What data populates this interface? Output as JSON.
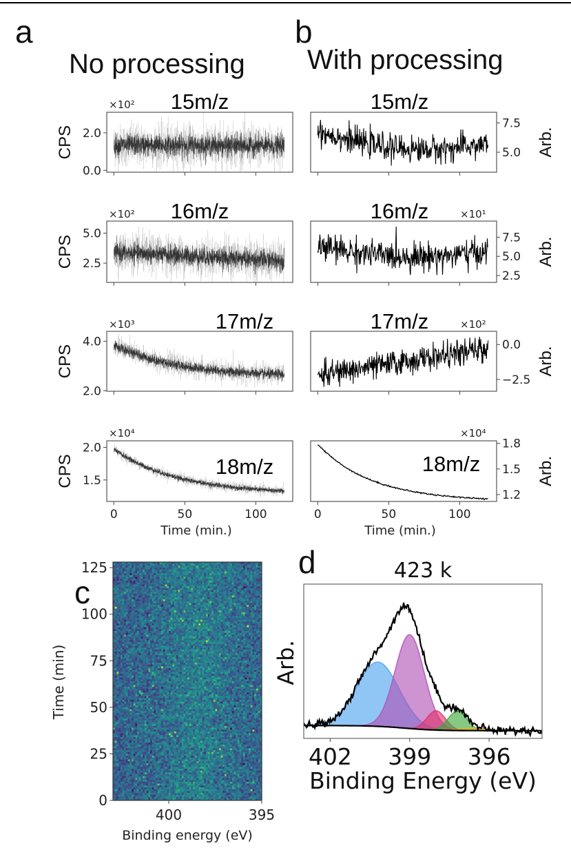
{
  "chart_data": [
    {
      "id": "a-15",
      "type": "line",
      "panel": "a",
      "title": "15m/z",
      "xlabel": "",
      "ylabel": "CPS",
      "offset_text": "×10²",
      "xlim": [
        -5,
        126
      ],
      "ylim": [
        -0.1,
        3.1
      ],
      "yticks": [
        0.0,
        2.0
      ],
      "ytick_labels": [
        "0.0",
        "2.0"
      ],
      "xticks": [
        0,
        50,
        100
      ],
      "ytick_side": "left",
      "style": "dense-noisy",
      "trend": {
        "x": [
          0,
          120
        ],
        "y_start": 1.35,
        "y_end": 1.3
      },
      "noise_sd": 0.35
    },
    {
      "id": "a-16",
      "type": "line",
      "panel": "a",
      "title": "16m/z",
      "ylabel": "CPS",
      "offset_text": "×10²",
      "xlim": [
        -5,
        126
      ],
      "ylim": [
        0.9,
        6.0
      ],
      "yticks": [
        2.5,
        5.0
      ],
      "ytick_labels": [
        "2.5",
        "5.0"
      ],
      "xticks": [
        0,
        50,
        100
      ],
      "ytick_side": "left",
      "style": "dense-noisy",
      "trend": {
        "x": [
          0,
          120
        ],
        "y_start": 3.4,
        "y_end": 2.7
      },
      "noise_sd": 0.5
    },
    {
      "id": "a-17",
      "type": "line",
      "panel": "a",
      "title": "17m/z",
      "ylabel": "CPS",
      "offset_text": "×10³",
      "xlim": [
        -5,
        126
      ],
      "ylim": [
        1.98,
        4.4
      ],
      "yticks": [
        2.0,
        4.0
      ],
      "ytick_labels": [
        "2.0",
        "4.0"
      ],
      "xticks": [
        0,
        50,
        100
      ],
      "ytick_side": "left",
      "style": "dense-noisy",
      "trend": {
        "x": [
          0,
          120
        ],
        "y_start": 3.85,
        "y_end": 2.65,
        "decay_tau": 45
      },
      "noise_sd": 0.13
    },
    {
      "id": "a-18",
      "type": "line",
      "panel": "a",
      "title": "18m/z",
      "xlabel": "Time (min.)",
      "ylabel": "CPS",
      "offset_text": "×10⁴",
      "xlim": [
        -5,
        126
      ],
      "ylim": [
        1.17,
        2.1
      ],
      "yticks": [
        1.5,
        2.0
      ],
      "ytick_labels": [
        "1.5",
        "2.0"
      ],
      "xticks": [
        0,
        50,
        100
      ],
      "xtick_labels": [
        "0",
        "50",
        "100"
      ],
      "ytick_side": "left",
      "style": "dense-noisy",
      "trend": {
        "x": [
          0,
          120
        ],
        "y_start": 1.97,
        "y_end": 1.33,
        "decay_tau": 45
      },
      "noise_sd": 0.025
    },
    {
      "id": "b-15",
      "type": "line",
      "panel": "b",
      "title": "15m/z",
      "ylabel": "Arb.",
      "offset_text": "",
      "xlim": [
        -5,
        126
      ],
      "ylim": [
        3.3,
        8.4
      ],
      "yticks": [
        5.0,
        7.5
      ],
      "ytick_labels": [
        "5.0",
        "7.5"
      ],
      "xticks": [
        0,
        50,
        100
      ],
      "ytick_side": "right",
      "style": "processed",
      "trend": {
        "x": [
          0,
          120
        ],
        "y_start": 6.8,
        "y_end": 5.7,
        "dip_mid": 5.3
      },
      "noise_sd": 0.55
    },
    {
      "id": "b-16",
      "type": "line",
      "panel": "b",
      "title": "16m/z",
      "ylabel": "Arb.",
      "offset_text": "×10¹",
      "xlim": [
        -5,
        126
      ],
      "ylim": [
        1.6,
        9.6
      ],
      "yticks": [
        2.5,
        5.0,
        7.5
      ],
      "ytick_labels": [
        "2.5",
        "5.0",
        "7.5"
      ],
      "xticks": [
        0,
        50,
        100
      ],
      "ytick_side": "right",
      "style": "processed",
      "trend": {
        "x": [
          0,
          120
        ],
        "y_start": 6.3,
        "y_end": 5.6,
        "dip_mid": 5.0
      },
      "noise_sd": 0.9
    },
    {
      "id": "b-17",
      "type": "line",
      "panel": "b",
      "title": "17m/z",
      "ylabel": "Arb.",
      "offset_text": "×10²",
      "xlim": [
        -5,
        126
      ],
      "ylim": [
        -3.35,
        0.95
      ],
      "yticks": [
        -2.5,
        0.0
      ],
      "ytick_labels": [
        "−2.5",
        "0.0"
      ],
      "xticks": [
        0,
        50,
        100
      ],
      "ytick_side": "right",
      "style": "processed",
      "trend": {
        "x": [
          0,
          120
        ],
        "y_start": -2.2,
        "y_end": -0.3
      },
      "noise_sd": 0.45
    },
    {
      "id": "b-18",
      "type": "line",
      "panel": "b",
      "title": "18m/z",
      "xlabel": "Time (min.)",
      "ylabel": "Arb.",
      "offset_text": "×10⁴",
      "xlim": [
        -5,
        126
      ],
      "ylim": [
        1.12,
        1.83
      ],
      "yticks": [
        1.2,
        1.5,
        1.8
      ],
      "ytick_labels": [
        "1.2",
        "1.5",
        "1.8"
      ],
      "xticks": [
        0,
        50,
        100
      ],
      "xtick_labels": [
        "0",
        "50",
        "100"
      ],
      "ytick_side": "right",
      "style": "smooth",
      "trend": {
        "x": [
          0,
          120
        ],
        "y_start": 1.79,
        "y_end": 1.15,
        "decay_tau": 38
      },
      "noise_sd": 0.004
    },
    {
      "id": "c",
      "type": "heatmap",
      "panel": "c",
      "title": "",
      "xlabel": "Binding energy (eV)",
      "ylabel": "Time (min)",
      "xlim": [
        403,
        395
      ],
      "ylim": [
        0,
        128
      ],
      "xticks": [
        400,
        395
      ],
      "xtick_labels": [
        "400",
        "395"
      ],
      "yticks": [
        0,
        25,
        50,
        75,
        100,
        125
      ],
      "ytick_labels": [
        "0",
        "25",
        "50",
        "75",
        "100",
        "125"
      ],
      "grid": {
        "columns": 80,
        "rows": 128
      },
      "colormap": "viridis",
      "value_range": [
        0,
        1
      ],
      "mean_level": 0.32,
      "brighter_band_eV": [
        399.5,
        397.5
      ]
    },
    {
      "id": "d",
      "type": "area",
      "panel": "d",
      "title": "423 k",
      "xlabel": "Binding Energy (eV)",
      "ylabel": "Arb.",
      "xlim": [
        403,
        394
      ],
      "ylim": [
        -0.1,
        1.1
      ],
      "xticks": [
        402,
        399,
        396
      ],
      "xtick_labels": [
        "402",
        "399",
        "396"
      ],
      "background": {
        "left": 0.0,
        "right": -0.04,
        "center": 399.2,
        "width": 1.2
      },
      "components": [
        {
          "name": "peak-1",
          "center": 400.2,
          "amplitude": 0.5,
          "sigma": 0.8,
          "color": "#4aa3f0"
        },
        {
          "name": "peak-2",
          "center": 399.0,
          "amplitude": 0.73,
          "sigma": 0.55,
          "color": "#b050b5"
        },
        {
          "name": "peak-3",
          "center": 398.0,
          "amplitude": 0.15,
          "sigma": 0.35,
          "color": "#e0306a"
        },
        {
          "name": "peak-4",
          "center": 397.2,
          "amplitude": 0.15,
          "sigma": 0.35,
          "color": "#3aa83a"
        },
        {
          "name": "peak-5",
          "center": 396.6,
          "amplitude": 0.02,
          "sigma": 0.5,
          "color": "#e0b020"
        }
      ],
      "envelope_color": "#000000",
      "data_noise_sd": 0.015
    }
  ],
  "labels": {
    "panel_a": "a",
    "panel_b": "b",
    "panel_c": "c",
    "panel_d": "d",
    "title_a": "No processing",
    "title_b": "With processing"
  }
}
